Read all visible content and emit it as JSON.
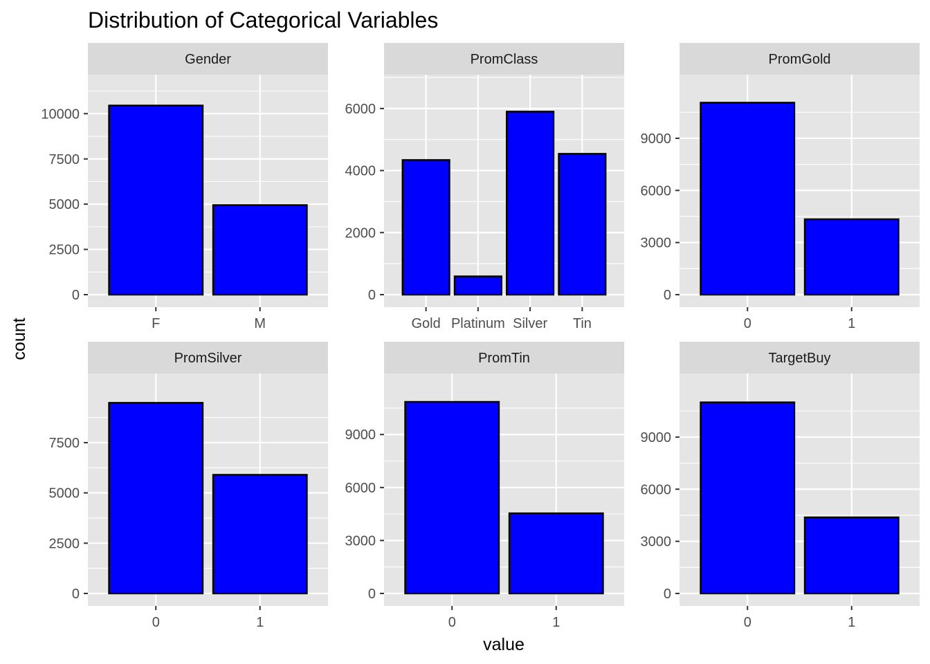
{
  "chart_data": {
    "type": "bar",
    "title": "Distribution of Categorical Variables",
    "xlabel": "value",
    "ylabel": "count",
    "grid": true,
    "colors": {
      "bar_fill": "#0000ff",
      "bar_outline": "#000000",
      "panel_bg": "#e5e5e5",
      "strip_bg": "#d9d9d9",
      "grid": "#ffffff"
    },
    "panels": [
      {
        "name": "Gender",
        "categories": [
          "F",
          "M"
        ],
        "values": [
          10450,
          4950
        ],
        "ylim": [
          0,
          12000
        ],
        "yticks": [
          0,
          2500,
          5000,
          7500,
          10000
        ]
      },
      {
        "name": "PromClass",
        "categories": [
          "Gold",
          "Platinum",
          "Silver",
          "Tin"
        ],
        "values": [
          4340,
          590,
          5900,
          4540
        ],
        "ylim": [
          0,
          7000
        ],
        "yticks": [
          0,
          2000,
          4000,
          6000
        ]
      },
      {
        "name": "PromGold",
        "categories": [
          "0",
          "1"
        ],
        "values": [
          11050,
          4340
        ],
        "ylim": [
          0,
          12500
        ],
        "yticks": [
          0,
          3000,
          6000,
          9000
        ]
      },
      {
        "name": "PromSilver",
        "categories": [
          "0",
          "1"
        ],
        "values": [
          9480,
          5900
        ],
        "ylim": [
          0,
          10800
        ],
        "yticks": [
          0,
          2500,
          5000,
          7500
        ]
      },
      {
        "name": "PromTin",
        "categories": [
          "0",
          "1"
        ],
        "values": [
          10850,
          4540
        ],
        "ylim": [
          0,
          12300
        ],
        "yticks": [
          0,
          3000,
          6000,
          9000
        ]
      },
      {
        "name": "TargetBuy",
        "categories": [
          "0",
          "1"
        ],
        "values": [
          11000,
          4380
        ],
        "ylim": [
          0,
          12500
        ],
        "yticks": [
          0,
          3000,
          6000,
          9000
        ]
      }
    ]
  }
}
